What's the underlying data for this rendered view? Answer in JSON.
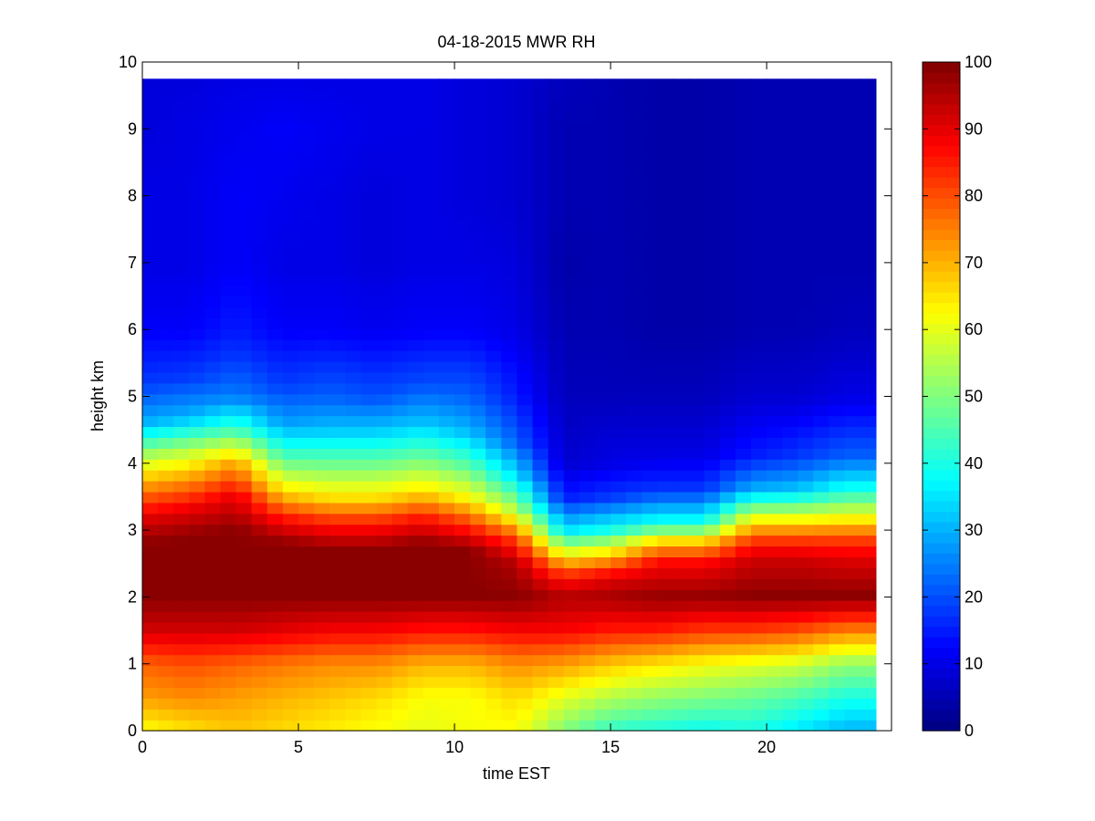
{
  "chart_data": {
    "type": "heatmap",
    "title": "04-18-2015 MWR RH",
    "xlabel": "time EST",
    "ylabel": "height km",
    "xlim": [
      0,
      24
    ],
    "ylim": [
      0,
      10
    ],
    "x_ticks": [
      "0",
      "5",
      "10",
      "15",
      "20"
    ],
    "y_ticks": [
      "0",
      "1",
      "2",
      "3",
      "4",
      "5",
      "6",
      "7",
      "8",
      "9",
      "10"
    ],
    "colorbar": {
      "colormap": "jet",
      "clim": [
        0,
        100
      ],
      "ticks": [
        "0",
        "10",
        "20",
        "30",
        "40",
        "50",
        "60",
        "70",
        "80",
        "90",
        "100"
      ]
    },
    "grid": false,
    "data_extent": {
      "time_start": 0,
      "time_end": 23.5,
      "height_top": 9.75
    },
    "profiles": [
      {
        "time": 0,
        "rh": [
          [
            0,
            62
          ],
          [
            0.5,
            72
          ],
          [
            1,
            78
          ],
          [
            1.5,
            92
          ],
          [
            2,
            99
          ],
          [
            2.8,
            99
          ],
          [
            3.2,
            90
          ],
          [
            3.6,
            75
          ],
          [
            4.1,
            55
          ],
          [
            4.6,
            30
          ],
          [
            5.2,
            18
          ],
          [
            6,
            12
          ],
          [
            7,
            10
          ],
          [
            8,
            10
          ],
          [
            9,
            9
          ],
          [
            9.75,
            9
          ]
        ]
      },
      {
        "time": 1.5,
        "rh": [
          [
            0,
            65
          ],
          [
            0.5,
            74
          ],
          [
            1,
            80
          ],
          [
            1.5,
            92
          ],
          [
            2,
            99
          ],
          [
            2.9,
            99
          ],
          [
            3.3,
            90
          ],
          [
            3.7,
            75
          ],
          [
            4.2,
            55
          ],
          [
            4.7,
            30
          ],
          [
            5.3,
            18
          ],
          [
            6,
            12
          ],
          [
            7,
            10
          ],
          [
            8,
            10
          ],
          [
            9,
            10
          ],
          [
            9.75,
            9
          ]
        ]
      },
      {
        "time": 3,
        "rh": [
          [
            0,
            68
          ],
          [
            0.5,
            72
          ],
          [
            1,
            78
          ],
          [
            1.5,
            92
          ],
          [
            2,
            99
          ],
          [
            3,
            99
          ],
          [
            3.5,
            90
          ],
          [
            4,
            72
          ],
          [
            4.5,
            45
          ],
          [
            5,
            25
          ],
          [
            5.6,
            18
          ],
          [
            6,
            15
          ],
          [
            7,
            12
          ],
          [
            8,
            12
          ],
          [
            9,
            11
          ],
          [
            9.75,
            10
          ]
        ]
      },
      {
        "time": 4.5,
        "rh": [
          [
            0,
            66
          ],
          [
            0.5,
            70
          ],
          [
            1,
            76
          ],
          [
            1.5,
            90
          ],
          [
            2,
            99
          ],
          [
            2.8,
            99
          ],
          [
            3.2,
            85
          ],
          [
            3.6,
            65
          ],
          [
            4.1,
            45
          ],
          [
            4.6,
            28
          ],
          [
            5.2,
            18
          ],
          [
            6,
            12
          ],
          [
            7,
            10
          ],
          [
            8,
            11
          ],
          [
            9,
            12
          ],
          [
            9.75,
            10
          ]
        ]
      },
      {
        "time": 6,
        "rh": [
          [
            0,
            64
          ],
          [
            0.5,
            68
          ],
          [
            1,
            74
          ],
          [
            1.5,
            88
          ],
          [
            2,
            99
          ],
          [
            2.7,
            99
          ],
          [
            3.1,
            85
          ],
          [
            3.5,
            65
          ],
          [
            4,
            48
          ],
          [
            4.5,
            32
          ],
          [
            5,
            22
          ],
          [
            6,
            12
          ],
          [
            7,
            10
          ],
          [
            8,
            10
          ],
          [
            9,
            11
          ],
          [
            9.75,
            10
          ]
        ]
      },
      {
        "time": 7.5,
        "rh": [
          [
            0,
            62
          ],
          [
            0.5,
            66
          ],
          [
            1,
            74
          ],
          [
            1.5,
            88
          ],
          [
            2,
            99
          ],
          [
            2.7,
            99
          ],
          [
            3.1,
            85
          ],
          [
            3.5,
            65
          ],
          [
            4,
            48
          ],
          [
            4.5,
            32
          ],
          [
            5,
            20
          ],
          [
            6,
            11
          ],
          [
            7,
            9
          ],
          [
            8,
            9
          ],
          [
            9,
            10
          ],
          [
            9.75,
            10
          ]
        ]
      },
      {
        "time": 9,
        "rh": [
          [
            0,
            60
          ],
          [
            0.5,
            62
          ],
          [
            1,
            70
          ],
          [
            1.5,
            86
          ],
          [
            2,
            99
          ],
          [
            2.8,
            99
          ],
          [
            3.2,
            85
          ],
          [
            3.6,
            65
          ],
          [
            4.1,
            48
          ],
          [
            4.6,
            32
          ],
          [
            5.2,
            20
          ],
          [
            6,
            12
          ],
          [
            7,
            10
          ],
          [
            8,
            10
          ],
          [
            9,
            10
          ],
          [
            9.75,
            10
          ]
        ]
      },
      {
        "time": 10.5,
        "rh": [
          [
            0,
            62
          ],
          [
            0.5,
            62
          ],
          [
            1,
            70
          ],
          [
            1.5,
            86
          ],
          [
            2,
            99
          ],
          [
            2.7,
            99
          ],
          [
            3.1,
            82
          ],
          [
            3.5,
            62
          ],
          [
            4,
            45
          ],
          [
            4.5,
            30
          ],
          [
            5,
            22
          ],
          [
            6,
            12
          ],
          [
            7,
            10
          ],
          [
            8,
            9
          ],
          [
            9,
            9
          ],
          [
            9.75,
            9
          ]
        ]
      },
      {
        "time": 12,
        "rh": [
          [
            0,
            62
          ],
          [
            0.5,
            66
          ],
          [
            1,
            74
          ],
          [
            1.5,
            88
          ],
          [
            2,
            99
          ],
          [
            2.5,
            95
          ],
          [
            2.9,
            80
          ],
          [
            3.3,
            55
          ],
          [
            3.8,
            35
          ],
          [
            4.3,
            22
          ],
          [
            5,
            15
          ],
          [
            6,
            10
          ],
          [
            7,
            9
          ],
          [
            8,
            8
          ],
          [
            9,
            8
          ],
          [
            9.75,
            8
          ]
        ]
      },
      {
        "time": 13.5,
        "rh": [
          [
            0,
            50
          ],
          [
            0.5,
            60
          ],
          [
            1,
            72
          ],
          [
            1.5,
            88
          ],
          [
            2,
            95
          ],
          [
            2.3,
            85
          ],
          [
            2.6,
            65
          ],
          [
            3,
            35
          ],
          [
            3.5,
            15
          ],
          [
            4,
            8
          ],
          [
            5,
            6
          ],
          [
            6,
            5
          ],
          [
            7,
            4
          ],
          [
            8,
            5
          ],
          [
            9,
            5
          ],
          [
            9.75,
            6
          ]
        ]
      },
      {
        "time": 15,
        "rh": [
          [
            0,
            42
          ],
          [
            0.5,
            55
          ],
          [
            1,
            68
          ],
          [
            1.5,
            85
          ],
          [
            2,
            96
          ],
          [
            2.3,
            90
          ],
          [
            2.6,
            70
          ],
          [
            3,
            40
          ],
          [
            3.5,
            18
          ],
          [
            4,
            10
          ],
          [
            5,
            6
          ],
          [
            6,
            5
          ],
          [
            7,
            5
          ],
          [
            8,
            5
          ],
          [
            9,
            5
          ],
          [
            9.75,
            5
          ]
        ]
      },
      {
        "time": 16.5,
        "rh": [
          [
            0,
            40
          ],
          [
            0.5,
            52
          ],
          [
            1,
            65
          ],
          [
            1.5,
            85
          ],
          [
            2,
            98
          ],
          [
            2.5,
            88
          ],
          [
            2.8,
            70
          ],
          [
            3.1,
            40
          ],
          [
            3.6,
            18
          ],
          [
            4.1,
            10
          ],
          [
            5,
            6
          ],
          [
            6,
            4
          ],
          [
            7,
            4
          ],
          [
            8,
            4
          ],
          [
            9,
            4
          ],
          [
            9.75,
            4
          ]
        ]
      },
      {
        "time": 18,
        "rh": [
          [
            0,
            38
          ],
          [
            0.5,
            50
          ],
          [
            1,
            62
          ],
          [
            1.5,
            82
          ],
          [
            2,
            98
          ],
          [
            2.5,
            88
          ],
          [
            2.8,
            70
          ],
          [
            3.1,
            40
          ],
          [
            3.6,
            18
          ],
          [
            4.1,
            10
          ],
          [
            5,
            6
          ],
          [
            6,
            4
          ],
          [
            7,
            4
          ],
          [
            8,
            4
          ],
          [
            9,
            4
          ],
          [
            9.75,
            4
          ]
        ]
      },
      {
        "time": 19.5,
        "rh": [
          [
            0,
            40
          ],
          [
            0.5,
            48
          ],
          [
            1,
            60
          ],
          [
            1.5,
            82
          ],
          [
            2,
            99
          ],
          [
            2.6,
            92
          ],
          [
            2.9,
            80
          ],
          [
            3.2,
            60
          ],
          [
            3.6,
            30
          ],
          [
            4.1,
            15
          ],
          [
            5,
            8
          ],
          [
            6,
            5
          ],
          [
            7,
            5
          ],
          [
            8,
            5
          ],
          [
            9,
            5
          ],
          [
            9.75,
            5
          ]
        ]
      },
      {
        "time": 21,
        "rh": [
          [
            0,
            35
          ],
          [
            0.5,
            45
          ],
          [
            1,
            58
          ],
          [
            1.5,
            80
          ],
          [
            2,
            99
          ],
          [
            2.6,
            92
          ],
          [
            2.9,
            80
          ],
          [
            3.2,
            60
          ],
          [
            3.6,
            32
          ],
          [
            4.1,
            18
          ],
          [
            5,
            8
          ],
          [
            6,
            5
          ],
          [
            7,
            5
          ],
          [
            8,
            5
          ],
          [
            9,
            5
          ],
          [
            9.75,
            5
          ]
        ]
      },
      {
        "time": 22.5,
        "rh": [
          [
            0,
            30
          ],
          [
            0.5,
            40
          ],
          [
            1,
            52
          ],
          [
            1.5,
            75
          ],
          [
            2,
            99
          ],
          [
            2.6,
            90
          ],
          [
            2.9,
            80
          ],
          [
            3.2,
            62
          ],
          [
            3.6,
            40
          ],
          [
            4.1,
            22
          ],
          [
            5,
            10
          ],
          [
            6,
            6
          ],
          [
            7,
            5
          ],
          [
            8,
            5
          ],
          [
            9,
            5
          ],
          [
            9.75,
            5
          ]
        ]
      }
    ]
  }
}
